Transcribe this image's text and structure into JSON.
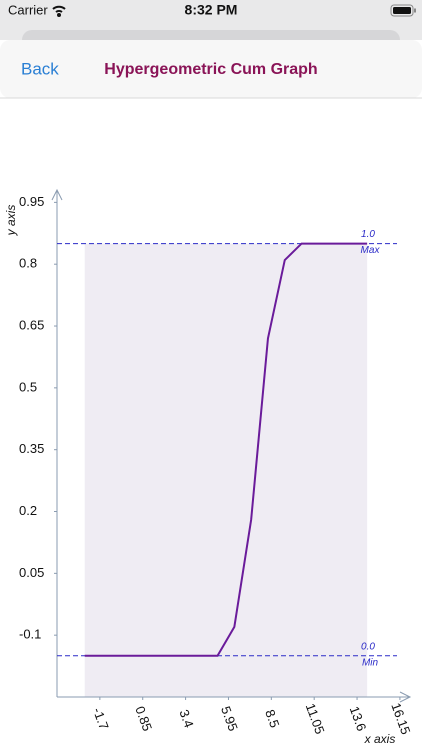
{
  "status_bar": {
    "carrier": "Carrier",
    "time": "8:32 PM"
  },
  "nav": {
    "back": "Back",
    "title": "Hypergeometric Cum Graph"
  },
  "chart_data": {
    "type": "line",
    "x_label": "x axis",
    "y_label": "y axis",
    "x": [
      -2.6,
      5.3,
      6.3,
      7.3,
      8.3,
      9.3,
      10.3,
      14.2
    ],
    "series": [
      {
        "color": "#6a1b9a",
        "values": [
          -0.15,
          -0.15,
          -0.08,
          0.18,
          0.62,
          0.81,
          0.85,
          0.85
        ]
      }
    ],
    "xlim": [
      -4.25,
      16.75
    ],
    "xticks": [
      -1.7,
      0.85,
      3.4,
      5.95,
      8.5,
      11.05,
      13.6,
      16.15
    ],
    "ylim": [
      -0.25,
      0.98
    ],
    "yticks": [
      0.95,
      0.8,
      0.65,
      0.5,
      0.35,
      0.2,
      0.05,
      -0.1
    ],
    "reference_lines": [
      {
        "value": 0.85,
        "label": "1.0",
        "note": "Max"
      },
      {
        "value": -0.15,
        "label": "0.0",
        "note": "Min"
      }
    ],
    "reference_color": "#2b2bc8",
    "fill_color": "#efecf3",
    "grid": false
  }
}
